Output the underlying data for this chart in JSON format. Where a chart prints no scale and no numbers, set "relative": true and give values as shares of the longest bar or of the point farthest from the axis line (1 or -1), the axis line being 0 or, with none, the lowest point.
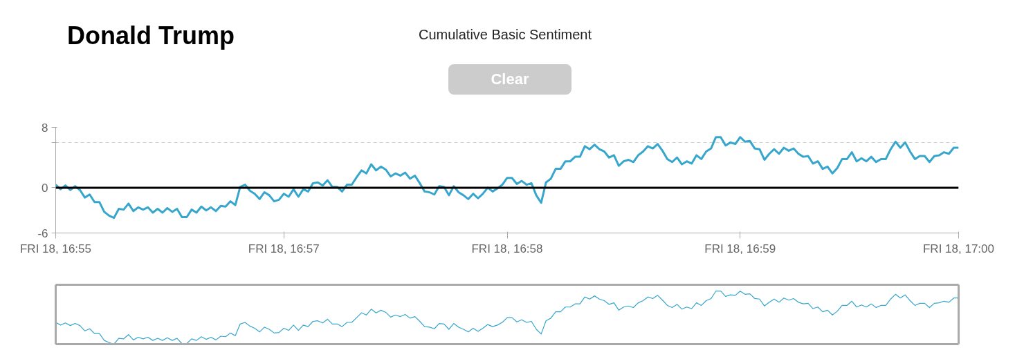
{
  "chart_data": [
    {
      "type": "line",
      "title": "Donald Trump",
      "subtitle": "Cumulative Basic Sentiment",
      "annotations": [
        "Clear"
      ],
      "categories": [
        "FRI 18, 16:55",
        null,
        null,
        null,
        null,
        null,
        null,
        null,
        null,
        null,
        null,
        null,
        null,
        null,
        null,
        null,
        null,
        null,
        null,
        null,
        null,
        null,
        null,
        null,
        null,
        null,
        null,
        null,
        null,
        null,
        null,
        null,
        null,
        null,
        null,
        null,
        null,
        null,
        null,
        null,
        null,
        null,
        null,
        null,
        null,
        null,
        null,
        "FRI 18, 16:57",
        null,
        null,
        null,
        null,
        null,
        null,
        null,
        null,
        null,
        null,
        null,
        null,
        null,
        null,
        null,
        null,
        null,
        null,
        null,
        null,
        null,
        null,
        null,
        null,
        null,
        null,
        null,
        null,
        null,
        null,
        null,
        null,
        null,
        null,
        null,
        null,
        null,
        null,
        null,
        null,
        null,
        null,
        null,
        null,
        null,
        "FRI 18, 16:58",
        null,
        null,
        null,
        null,
        null,
        null,
        null,
        null,
        null,
        null,
        null,
        null,
        null,
        null,
        null,
        null,
        null,
        null,
        null,
        null,
        null,
        null,
        null,
        null,
        null,
        null,
        null,
        null,
        null,
        null,
        null,
        null,
        null,
        null,
        null,
        null,
        null,
        null,
        null,
        null,
        null,
        null,
        null,
        null,
        null,
        null,
        null,
        "FRI 18, 16:59",
        null,
        null,
        null,
        null,
        null,
        null,
        null,
        null,
        null,
        null,
        null,
        null,
        null,
        null,
        null,
        null,
        null,
        null,
        null,
        null,
        null,
        null,
        null,
        null,
        null,
        null,
        null,
        null,
        null,
        null,
        null,
        null,
        null,
        null,
        null,
        null,
        null,
        null,
        null,
        null,
        null,
        null,
        null,
        null,
        "FRI 18, 17:00"
      ],
      "series": [
        {
          "color": "#36a6cc",
          "values": [
            0.4,
            -0.2,
            0.3,
            -0.3,
            0.2,
            -0.3,
            -1.3,
            -0.9,
            -1.9,
            -1.9,
            -3.2,
            -3.7,
            -4.0,
            -2.8,
            -2.9,
            -2.1,
            -3.1,
            -2.6,
            -2.9,
            -2.6,
            -3.3,
            -2.8,
            -3.3,
            -2.7,
            -3.2,
            -2.8,
            -3.9,
            -3.9,
            -2.9,
            -3.3,
            -2.5,
            -3.0,
            -2.6,
            -3.1,
            -2.4,
            -2.5,
            -1.8,
            -2.3,
            0.1,
            0.4,
            -0.4,
            -0.8,
            -1.5,
            -0.6,
            -1.0,
            -1.8,
            -1.6,
            -0.8,
            -1.2,
            -0.2,
            -1.2,
            -0.2,
            -0.5,
            0.6,
            0.7,
            0.3,
            1.0,
            0.1,
            0.1,
            -0.5,
            0.4,
            0.4,
            1.4,
            2.3,
            1.9,
            3.1,
            2.3,
            2.8,
            2.4,
            1.5,
            1.9,
            1.6,
            2.0,
            1.2,
            1.6,
            0.6,
            -0.5,
            -0.6,
            -0.9,
            0.2,
            0.1,
            -1.0,
            0.2,
            -0.6,
            -1.0,
            -1.5,
            -0.8,
            -1.4,
            -0.8,
            0.0,
            -0.5,
            -0.1,
            0.4,
            1.3,
            1.3,
            0.5,
            0.9,
            0.4,
            0.6,
            -1.0,
            -2.0,
            0.7,
            1.2,
            2.5,
            2.5,
            3.5,
            3.5,
            4.1,
            4.1,
            5.5,
            5.1,
            5.7,
            5.1,
            4.8,
            4.0,
            4.3,
            2.9,
            3.5,
            3.7,
            3.4,
            4.3,
            4.8,
            5.5,
            5.2,
            5.8,
            4.9,
            3.8,
            3.4,
            4.0,
            3.1,
            3.5,
            3.2,
            4.3,
            3.8,
            4.8,
            5.2,
            6.7,
            6.7,
            5.6,
            6.0,
            5.8,
            6.7,
            6.1,
            6.2,
            5.2,
            5.1,
            3.7,
            4.5,
            5.1,
            4.5,
            5.3,
            4.9,
            5.2,
            4.5,
            4.1,
            4.2,
            3.2,
            3.5,
            2.5,
            2.8,
            1.9,
            2.6,
            3.8,
            3.8,
            4.7,
            3.5,
            3.9,
            3.5,
            4.1,
            3.4,
            3.8,
            3.8,
            5.1,
            6.1,
            5.3,
            6.0,
            4.8,
            3.8,
            4.2,
            4.2,
            3.4,
            4.2,
            4.3,
            4.7,
            4.5,
            5.3,
            5.3
          ]
        }
      ],
      "ylim": [
        -6,
        8
      ],
      "yticks": [
        -6,
        0,
        {
          "value": 6,
          "label": null
        },
        8
      ],
      "grid": "y",
      "ref_lines": [
        {
          "axis": "y",
          "value": 0,
          "color": "#000000"
        }
      ]
    },
    {
      "type": "line",
      "categories": [
        null,
        null,
        null,
        null,
        null,
        null,
        null,
        null,
        null,
        null,
        null,
        null,
        null,
        null,
        null,
        null,
        null,
        null,
        null,
        null,
        null,
        null,
        null,
        null,
        null,
        null,
        null,
        null,
        null,
        null,
        null,
        null,
        null,
        null,
        null,
        null,
        null,
        null,
        null,
        null,
        null,
        null,
        null,
        null,
        null,
        null,
        null,
        null,
        null,
        null,
        null,
        null,
        null,
        null,
        null,
        null,
        null,
        null,
        null,
        null,
        null,
        null,
        null,
        null,
        null,
        null,
        null,
        null,
        null,
        null,
        null,
        null,
        null,
        null,
        null,
        null,
        null,
        null,
        null,
        null,
        null,
        null,
        null,
        null,
        null,
        null,
        null,
        null,
        null,
        null,
        null,
        null,
        null,
        null,
        null,
        null,
        null,
        null,
        null,
        null,
        null,
        null,
        null,
        null,
        null,
        null,
        null,
        null,
        null,
        null,
        null,
        null,
        null,
        null,
        null,
        null,
        null,
        null,
        null,
        null,
        null,
        null,
        null,
        null,
        null,
        null,
        null,
        null,
        null,
        null,
        null,
        null,
        null,
        null,
        null,
        null,
        null,
        null,
        null,
        null,
        null,
        null,
        null,
        null,
        null,
        null,
        null,
        null,
        null,
        null,
        null,
        null,
        null,
        null,
        null,
        null,
        null,
        null,
        null,
        null,
        null,
        null,
        null,
        null,
        null,
        null,
        null,
        null,
        null,
        null,
        null,
        null,
        null,
        null,
        null,
        null,
        null,
        null,
        null,
        null,
        null,
        null,
        null,
        null,
        null,
        null,
        null
      ],
      "series": [
        {
          "color": "#36a6cc",
          "values": [
            0.41,
            0.36,
            0.4,
            0.35,
            0.39,
            0.35,
            0.25,
            0.29,
            0.2,
            0.2,
            0.07,
            0.03,
            0,
            0.11,
            0.1,
            0.18,
            0.08,
            0.13,
            0.1,
            0.13,
            0.07,
            0.11,
            0.07,
            0.12,
            0.07,
            0.11,
            0.01,
            0.01,
            0.1,
            0.07,
            0.14,
            0.09,
            0.13,
            0.08,
            0.15,
            0.14,
            0.21,
            0.16,
            0.38,
            0.41,
            0.34,
            0.3,
            0.23,
            0.32,
            0.28,
            0.21,
            0.22,
            0.3,
            0.26,
            0.36,
            0.26,
            0.36,
            0.33,
            0.43,
            0.44,
            0.4,
            0.47,
            0.38,
            0.38,
            0.33,
            0.41,
            0.41,
            0.5,
            0.59,
            0.55,
            0.66,
            0.59,
            0.64,
            0.6,
            0.51,
            0.55,
            0.52,
            0.56,
            0.49,
            0.52,
            0.43,
            0.33,
            0.32,
            0.29,
            0.39,
            0.38,
            0.28,
            0.39,
            0.32,
            0.28,
            0.23,
            0.3,
            0.24,
            0.3,
            0.37,
            0.33,
            0.36,
            0.41,
            0.5,
            0.5,
            0.42,
            0.46,
            0.41,
            0.43,
            0.28,
            0.19,
            0.44,
            0.49,
            0.61,
            0.61,
            0.7,
            0.7,
            0.76,
            0.76,
            0.89,
            0.85,
            0.91,
            0.85,
            0.82,
            0.75,
            0.78,
            0.64,
            0.7,
            0.72,
            0.69,
            0.78,
            0.82,
            0.89,
            0.86,
            0.92,
            0.83,
            0.73,
            0.69,
            0.75,
            0.66,
            0.7,
            0.67,
            0.78,
            0.73,
            0.82,
            0.86,
            1.0,
            1.0,
            0.9,
            0.93,
            0.92,
            1.0,
            0.94,
            0.95,
            0.86,
            0.85,
            0.72,
            0.79,
            0.85,
            0.79,
            0.87,
            0.83,
            0.86,
            0.79,
            0.76,
            0.77,
            0.67,
            0.7,
            0.61,
            0.64,
            0.55,
            0.62,
            0.73,
            0.73,
            0.81,
            0.7,
            0.74,
            0.7,
            0.76,
            0.69,
            0.73,
            0.73,
            0.85,
            0.94,
            0.87,
            0.93,
            0.82,
            0.73,
            0.77,
            0.77,
            0.69,
            0.77,
            0.78,
            0.81,
            0.79,
            0.87,
            0.87
          ]
        }
      ],
      "relative": true,
      "tick_labels": false
    }
  ]
}
